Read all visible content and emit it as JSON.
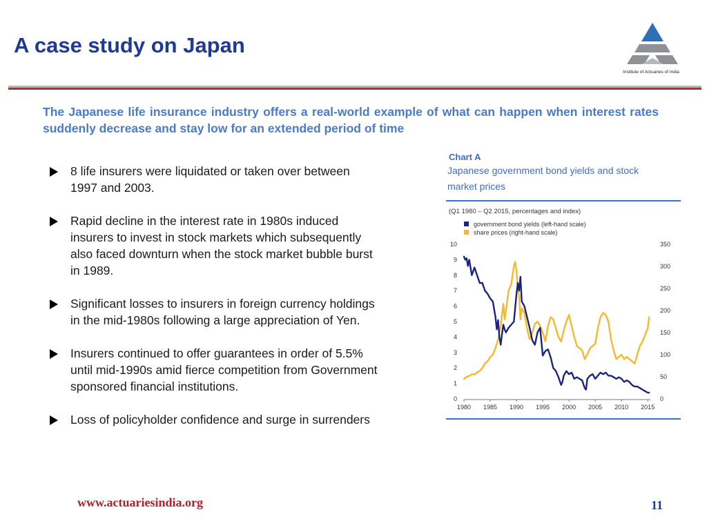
{
  "slide": {
    "title": "A case study on Japan",
    "logo_caption": "Institute of Actuaries of India",
    "intro": "The Japanese life insurance industry offers a real-world example of what can happen when interest rates suddenly decrease and stay low for an extended period of time",
    "bullets": [
      "8 life insurers were liquidated or taken over between 1997 and 2003.",
      "Rapid decline in the interest rate in 1980s induced insurers to invest in stock markets which subsequently also faced downturn when the stock market bubble burst in 1989.",
      "Significant losses to insurers in foreign currency holdings in the mid-1980s following a large appreciation of Yen.",
      "Insurers continued to offer guarantees in order of 5.5% until mid-1990s amid fierce competition from Government sponsored financial institutions.",
      "Loss of policyholder confidence and surge in surrenders"
    ],
    "footer_url": "www.actuariesindia.org",
    "page_number": "11"
  },
  "colors": {
    "title": "#1f3a93",
    "intro": "#4a7bc8",
    "accent_red": "#c0282d",
    "chart_heading": "#3c6fc4",
    "series_bond": "#1a237e",
    "series_share": "#f5b82e"
  },
  "chart_data": {
    "type": "line",
    "chart_label": "Chart A",
    "title": "Japanese government bond yields and stock market prices",
    "subtitle": "(Q1 1980 – Q2 2015, percentages and index)",
    "x_ticks": [
      "1980",
      "1985",
      "1990",
      "1995",
      "2000",
      "2005",
      "2010",
      "2015"
    ],
    "xlim": [
      1980,
      2015.5
    ],
    "y_left": {
      "lim": [
        0,
        10
      ],
      "ticks": [
        "0",
        "1",
        "2",
        "3",
        "4",
        "5",
        "6",
        "7",
        "8",
        "9",
        "10"
      ]
    },
    "y_right": {
      "lim": [
        0,
        350
      ],
      "ticks": [
        "0",
        "50",
        "100",
        "150",
        "200",
        "250",
        "300",
        "350"
      ]
    },
    "grid": false,
    "legend_position": "top-left",
    "series": [
      {
        "name": "government bond yields (left-hand scale)",
        "axis": "left",
        "color": "#1a237e",
        "x": [
          1980,
          1980.25,
          1980.5,
          1980.75,
          1981,
          1981.5,
          1982,
          1982.5,
          1983,
          1983.5,
          1984,
          1984.5,
          1985,
          1985.5,
          1986,
          1986.25,
          1986.5,
          1986.75,
          1987,
          1987.25,
          1987.5,
          1987.75,
          1988,
          1988.5,
          1989,
          1989.5,
          1990,
          1990.25,
          1990.5,
          1990.75,
          1991,
          1991.5,
          1992,
          1992.5,
          1993,
          1993.5,
          1994,
          1994.5,
          1995,
          1995.5,
          1996,
          1996.5,
          1997,
          1997.5,
          1998,
          1998.5,
          1998.75,
          1999,
          1999.5,
          2000,
          2000.5,
          2001,
          2001.5,
          2002,
          2002.5,
          2003,
          2003.25,
          2003.5,
          2004,
          2004.5,
          2005,
          2005.5,
          2006,
          2006.5,
          2007,
          2007.5,
          2008,
          2008.5,
          2009,
          2009.5,
          2010,
          2010.5,
          2011,
          2011.5,
          2012,
          2012.5,
          2013,
          2013.5,
          2014,
          2014.5,
          2015,
          2015.25
        ],
        "y": [
          9.2,
          9.0,
          9.1,
          8.6,
          9.0,
          8.0,
          8.5,
          8.0,
          7.5,
          7.5,
          7.0,
          6.8,
          6.5,
          6.3,
          5.3,
          4.5,
          5.1,
          4.0,
          3.5,
          4.2,
          4.8,
          4.5,
          4.3,
          4.6,
          4.8,
          5.0,
          6.8,
          7.5,
          7.0,
          7.9,
          6.3,
          6.0,
          5.3,
          4.6,
          3.8,
          3.5,
          4.3,
          4.6,
          2.8,
          3.1,
          3.2,
          2.7,
          2.0,
          1.8,
          1.4,
          0.9,
          1.1,
          1.5,
          1.8,
          1.6,
          1.7,
          1.3,
          1.4,
          1.3,
          1.2,
          0.7,
          0.6,
          1.3,
          1.5,
          1.6,
          1.3,
          1.5,
          1.7,
          1.6,
          1.7,
          1.5,
          1.5,
          1.4,
          1.3,
          1.4,
          1.3,
          1.1,
          1.2,
          1.1,
          0.9,
          0.8,
          0.8,
          0.7,
          0.6,
          0.5,
          0.4,
          0.4
        ]
      },
      {
        "name": "share prices (right-hand scale)",
        "axis": "right",
        "color": "#f5b82e",
        "x": [
          1980,
          1980.5,
          1981,
          1981.5,
          1982,
          1982.5,
          1983,
          1983.5,
          1984,
          1984.5,
          1985,
          1985.5,
          1986,
          1986.5,
          1987,
          1987.5,
          1987.75,
          1988,
          1988.5,
          1989,
          1989.5,
          1989.75,
          1990,
          1990.25,
          1990.5,
          1990.75,
          1991,
          1991.5,
          1992,
          1992.5,
          1993,
          1993.5,
          1994,
          1994.5,
          1995,
          1995.5,
          1996,
          1996.5,
          1997,
          1997.5,
          1998,
          1998.5,
          1999,
          1999.5,
          2000,
          2000.5,
          2001,
          2001.5,
          2002,
          2002.5,
          2003,
          2003.5,
          2004,
          2004.5,
          2005,
          2005.5,
          2006,
          2006.5,
          2007,
          2007.5,
          2008,
          2008.5,
          2009,
          2009.5,
          2010,
          2010.5,
          2011,
          2011.5,
          2012,
          2012.5,
          2013,
          2013.5,
          2014,
          2014.5,
          2015,
          2015.25
        ],
        "y": [
          45,
          50,
          52,
          56,
          55,
          60,
          63,
          70,
          80,
          85,
          95,
          100,
          115,
          135,
          165,
          215,
          180,
          200,
          245,
          260,
          300,
          310,
          290,
          250,
          235,
          180,
          205,
          195,
          160,
          135,
          150,
          170,
          175,
          165,
          150,
          130,
          165,
          185,
          180,
          160,
          140,
          130,
          155,
          175,
          190,
          165,
          140,
          120,
          115,
          110,
          90,
          100,
          115,
          120,
          125,
          160,
          185,
          195,
          190,
          175,
          135,
          110,
          90,
          95,
          100,
          90,
          95,
          90,
          85,
          80,
          100,
          120,
          130,
          145,
          160,
          185
        ]
      }
    ]
  }
}
